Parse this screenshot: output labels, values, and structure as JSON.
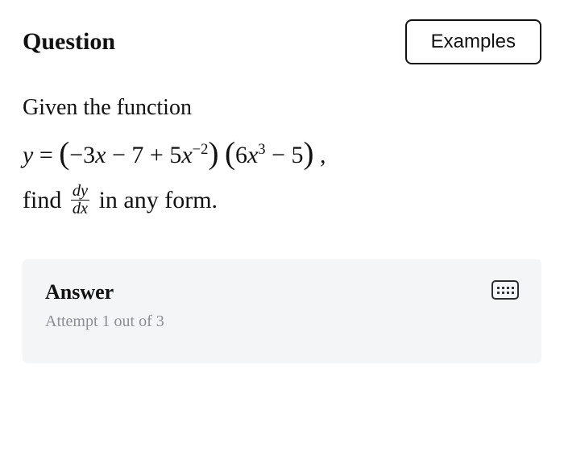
{
  "header": {
    "title": "Question",
    "examples_label": "Examples"
  },
  "problem": {
    "intro": "Given the function",
    "lhs": "y",
    "eq": "=",
    "factor1": {
      "t1_coef": "−3",
      "t1_var": "x",
      "t2": "− 7",
      "t3_coef": "+ 5",
      "t3_var": "x",
      "t3_exp": "−2"
    },
    "factor2": {
      "t1_coef": "6",
      "t1_var": "x",
      "t1_exp": "3",
      "t2": "− 5"
    },
    "trailing_comma": ",",
    "find_word": "find",
    "frac_num": "dy",
    "frac_den": "dx",
    "tail": "in any form."
  },
  "answer": {
    "title": "Answer",
    "attempt": "Attempt 1 out of 3"
  },
  "colors": {
    "bg": "#ffffff",
    "text": "#111111",
    "muted": "#8a8f94",
    "panel": "#f4f5f6",
    "border": "#111111"
  }
}
